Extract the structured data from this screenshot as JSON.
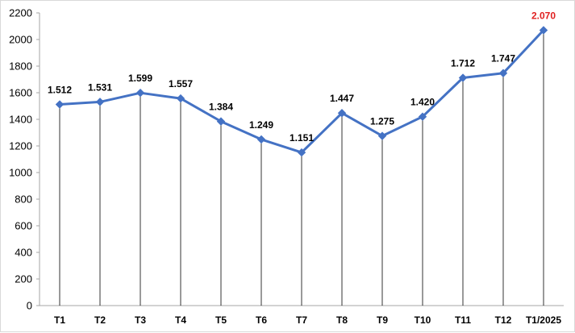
{
  "chart_data": {
    "type": "line",
    "categories": [
      "T1",
      "T2",
      "T3",
      "T4",
      "T5",
      "T6",
      "T7",
      "T8",
      "T9",
      "T10",
      "T11",
      "T12",
      "T1/2025"
    ],
    "series": [
      {
        "values": [
          1512,
          1531,
          1599,
          1557,
          1384,
          1249,
          1151,
          1447,
          1275,
          1420,
          1712,
          1747,
          2070
        ],
        "labels": [
          "1.512",
          "1.531",
          "1.599",
          "1.557",
          "1.384",
          "1.249",
          "1.151",
          "1.447",
          "1.275",
          "1.420",
          "1.712",
          "1.747",
          "2.070"
        ],
        "color": "#4472c4"
      }
    ],
    "highlight_index": 12,
    "highlight_color": "#e02020",
    "label_color": "#000000",
    "ylim": [
      0,
      2200
    ],
    "yticks": [
      0,
      200,
      400,
      600,
      800,
      1000,
      1200,
      1400,
      1600,
      1800,
      2000,
      2200
    ],
    "drop_lines": true,
    "grid": false,
    "legend": "none"
  }
}
